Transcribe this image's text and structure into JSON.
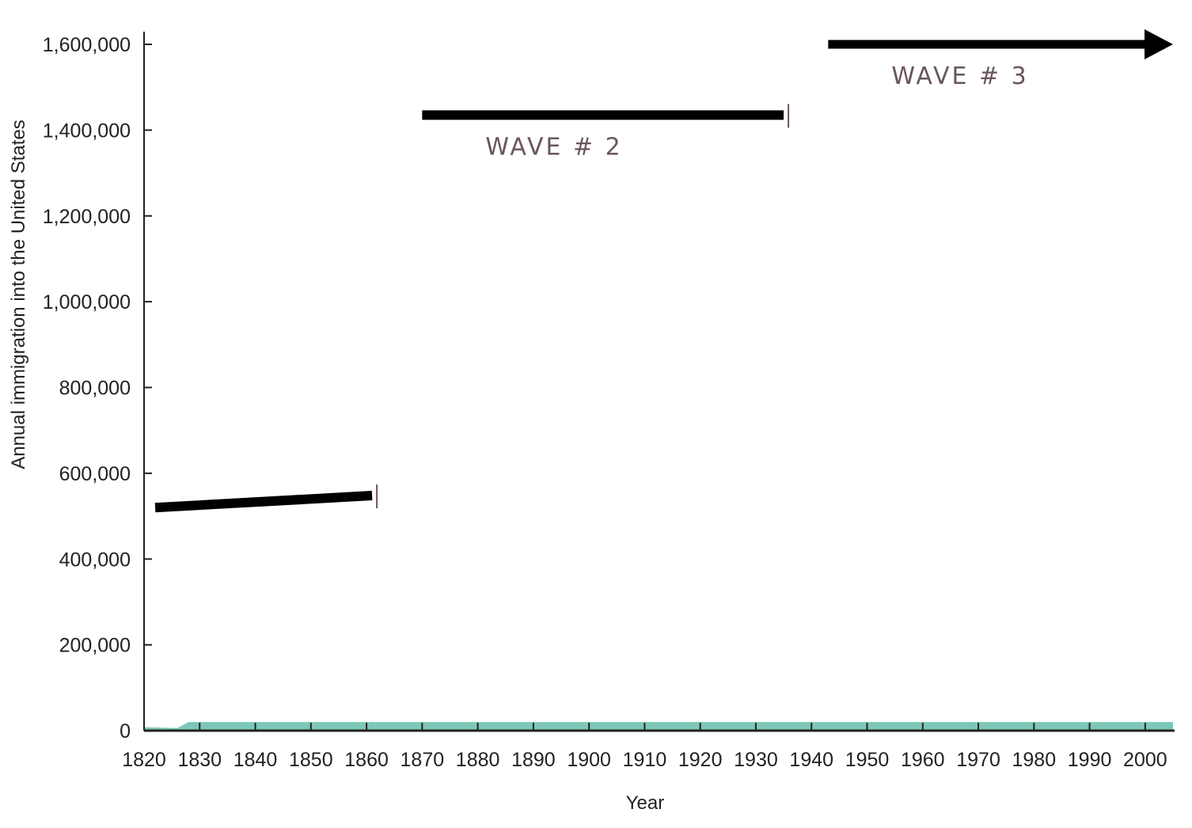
{
  "chart_data": {
    "type": "area",
    "xlabel": "Year",
    "ylabel": "Annual immigration into the United States",
    "xlim": [
      1820,
      2005
    ],
    "ylim": [
      0,
      1600000
    ],
    "x_ticks": [
      1820,
      1830,
      1840,
      1850,
      1860,
      1870,
      1880,
      1890,
      1900,
      1910,
      1920,
      1930,
      1940,
      1950,
      1960,
      1970,
      1980,
      1990,
      2000
    ],
    "y_ticks": [
      {
        "value": 0,
        "label": "0"
      },
      {
        "value": 200000,
        "label": "200,000"
      },
      {
        "value": 400000,
        "label": "400,000"
      },
      {
        "value": 600000,
        "label": "600,000"
      },
      {
        "value": 800000,
        "label": "800,000"
      },
      {
        "value": 1000000,
        "label": "1,000,000"
      },
      {
        "value": 1200000,
        "label": "1,200,000"
      },
      {
        "value": 1400000,
        "label": "1,400,000"
      },
      {
        "value": 1600000,
        "label": "1,600,000"
      }
    ],
    "grid": false,
    "area_color": "#7cc8b8",
    "series": [
      {
        "x": [
          1820,
          1826,
          1828,
          1840,
          1860,
          1880,
          1900,
          1920,
          1930,
          1940,
          1960,
          1980,
          2000,
          2005
        ],
        "values": [
          8000,
          6000,
          20000,
          20000,
          20000,
          20000,
          20000,
          20000,
          20000,
          20000,
          20000,
          20000,
          20000,
          20000
        ]
      }
    ],
    "annotations": [
      {
        "label": "",
        "x_start": 1822,
        "x_end": 1861,
        "y_start": 520000,
        "y_end": 548000,
        "arrow": false
      },
      {
        "label": "WAVE # 2",
        "x_start": 1870,
        "x_end": 1935,
        "y_start": 1435000,
        "y_end": 1435000,
        "arrow": false
      },
      {
        "label": "WAVE # 3",
        "x_start": 1943,
        "x_end": 2005,
        "y_start": 1600000,
        "y_end": 1600000,
        "arrow": true
      }
    ],
    "annotation_color": "#000000",
    "handwriting_color": "#6a5560"
  }
}
